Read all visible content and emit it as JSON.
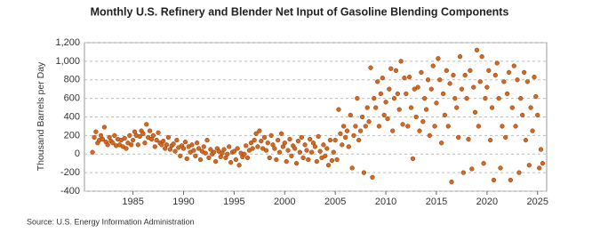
{
  "chart_data": {
    "type": "scatter",
    "title": "Monthly U.S. Refinery and Blender Net Input of Gasoline Blending Components",
    "y_label": "Thousand Barrels per Day",
    "source": "Source: U.S. Energy Information Administration",
    "color": "#d2691e",
    "grid": true,
    "xlim": [
      1980.2,
      2025.9
    ],
    "xticks": [
      1985,
      1990,
      1995,
      2000,
      2005,
      2010,
      2015,
      2020,
      2025
    ],
    "ylim": [
      -400,
      1200
    ],
    "yticks": [
      -400,
      -200,
      0,
      200,
      400,
      600,
      800,
      {
        "value": 1000,
        "label": "1,000"
      },
      {
        "value": 1200,
        "label": "1,200"
      }
    ],
    "series": [
      {
        "x": [
          1981,
          1981.17,
          1981.33,
          1981.5,
          1981.67,
          1981.83,
          1982,
          1982.17,
          1982.33,
          1982.5,
          1982.67,
          1982.83,
          1983,
          1983.17,
          1983.33,
          1983.5,
          1983.67,
          1983.83,
          1984,
          1984.17,
          1984.33,
          1984.5,
          1984.67,
          1984.83,
          1985,
          1985.17,
          1985.33,
          1985.5,
          1985.67,
          1985.83,
          1986,
          1986.17,
          1986.33,
          1986.5,
          1986.67,
          1986.83,
          1987,
          1987.17,
          1987.33,
          1987.5,
          1987.67,
          1987.83,
          1988,
          1988.17,
          1988.33,
          1988.5,
          1988.67,
          1988.83,
          1989,
          1989.17,
          1989.33,
          1989.5,
          1989.67,
          1989.83,
          1990,
          1990.17,
          1990.33,
          1990.5,
          1990.67,
          1990.83,
          1991,
          1991.17,
          1991.33,
          1991.5,
          1991.67,
          1991.83,
          1992,
          1992.17,
          1992.33,
          1992.5,
          1992.67,
          1992.83,
          1993,
          1993.17,
          1993.33,
          1993.5,
          1993.67,
          1993.83,
          1994,
          1994.17,
          1994.33,
          1994.5,
          1994.67,
          1994.83,
          1995,
          1995.17,
          1995.33,
          1995.5,
          1995.67,
          1995.83,
          1996,
          1996.17,
          1996.33,
          1996.5,
          1996.67,
          1996.83,
          1997,
          1997.17,
          1997.33,
          1997.5,
          1997.67,
          1997.83,
          1998,
          1998.17,
          1998.33,
          1998.5,
          1998.67,
          1998.83,
          1999,
          1999.17,
          1999.33,
          1999.5,
          1999.67,
          1999.83,
          2000,
          2000.17,
          2000.33,
          2000.5,
          2000.67,
          2000.83,
          2001,
          2001.17,
          2001.33,
          2001.5,
          2001.67,
          2001.83,
          2002,
          2002.17,
          2002.33,
          2002.5,
          2002.67,
          2002.83,
          2003,
          2003.17,
          2003.33,
          2003.5,
          2003.67,
          2003.83,
          2004,
          2004.17,
          2004.33,
          2004.5,
          2004.67,
          2004.83,
          2005,
          2005.17,
          2005.33,
          2005.5,
          2005.67,
          2005.83,
          2006,
          2006.17,
          2006.33,
          2006.5,
          2006.67,
          2006.83,
          2007,
          2007.17,
          2007.33,
          2007.5,
          2007.67,
          2007.83,
          2008,
          2008.17,
          2008.33,
          2008.5,
          2008.67,
          2008.83,
          2009,
          2009.17,
          2009.33,
          2009.5,
          2009.67,
          2009.83,
          2010,
          2010.17,
          2010.33,
          2010.5,
          2010.67,
          2010.83,
          2011,
          2011.17,
          2011.33,
          2011.5,
          2011.67,
          2011.83,
          2012,
          2012.17,
          2012.33,
          2012.5,
          2012.67,
          2012.83,
          2013,
          2013.17,
          2013.33,
          2013.5,
          2013.67,
          2013.83,
          2014,
          2014.17,
          2014.33,
          2014.5,
          2014.67,
          2014.83,
          2015,
          2015.17,
          2015.33,
          2015.5,
          2015.67,
          2015.83,
          2016,
          2016.17,
          2016.33,
          2016.5,
          2016.67,
          2016.83,
          2017,
          2017.17,
          2017.33,
          2017.5,
          2017.67,
          2017.83,
          2018,
          2018.17,
          2018.33,
          2018.5,
          2018.67,
          2018.83,
          2019,
          2019.17,
          2019.33,
          2019.5,
          2019.67,
          2019.83,
          2020,
          2020.17,
          2020.33,
          2020.5,
          2020.67,
          2020.83,
          2021,
          2021.17,
          2021.33,
          2021.5,
          2021.67,
          2021.83,
          2022,
          2022.17,
          2022.33,
          2022.5,
          2022.67,
          2022.83,
          2023,
          2023.17,
          2023.33,
          2023.5,
          2023.67,
          2023.83,
          2024,
          2024.17,
          2024.33,
          2024.5,
          2024.67,
          2024.83,
          2025,
          2025.17,
          2025.33,
          2025.5
        ],
        "values": [
          20,
          180,
          240,
          120,
          150,
          200,
          160,
          290,
          130,
          100,
          180,
          140,
          120,
          200,
          90,
          160,
          100,
          150,
          80,
          170,
          60,
          120,
          200,
          100,
          150,
          240,
          200,
          100,
          190,
          250,
          220,
          120,
          320,
          180,
          250,
          160,
          200,
          80,
          150,
          230,
          120,
          100,
          140,
          60,
          100,
          180,
          50,
          90,
          110,
          30,
          150,
          70,
          -20,
          90,
          60,
          130,
          -50,
          80,
          20,
          100,
          40,
          -20,
          120,
          60,
          -60,
          30,
          80,
          10,
          150,
          -40,
          50,
          0,
          20,
          -80,
          60,
          30,
          -30,
          10,
          50,
          -40,
          0,
          80,
          -90,
          20,
          30,
          -60,
          60,
          -120,
          10,
          -30,
          0,
          90,
          -40,
          40,
          120,
          60,
          150,
          220,
          80,
          250,
          140,
          60,
          180,
          40,
          120,
          -40,
          200,
          100,
          60,
          -60,
          150,
          20,
          220,
          80,
          120,
          -80,
          40,
          160,
          -20,
          90,
          60,
          -100,
          140,
          20,
          180,
          -40,
          100,
          40,
          -60,
          160,
          20,
          120,
          80,
          -80,
          190,
          30,
          -40,
          100,
          -20,
          60,
          -120,
          150,
          -70,
          20,
          150,
          -60,
          480,
          220,
          100,
          300,
          180,
          250,
          80,
          420,
          -150,
          200,
          300,
          600,
          150,
          250,
          400,
          -200,
          300,
          500,
          350,
          930,
          -250,
          600,
          500,
          780,
          300,
          650,
          820,
          420,
          560,
          380,
          700,
          920,
          250,
          600,
          900,
          650,
          480,
          1000,
          320,
          820,
          650,
          300,
          830,
          500,
          -50,
          700,
          400,
          720,
          250,
          880,
          350,
          600,
          480,
          800,
          200,
          700,
          950,
          300,
          550,
          1030,
          800,
          120,
          650,
          420,
          900,
          300,
          760,
          -300,
          850,
          600,
          500,
          180,
          1050,
          700,
          -200,
          850,
          600,
          160,
          900,
          -160,
          720,
          450,
          1120,
          300,
          780,
          1050,
          -100,
          600,
          720,
          900,
          150,
          500,
          -280,
          850,
          980,
          600,
          -150,
          300,
          780,
          180,
          650,
          880,
          -280,
          500,
          950,
          300,
          800,
          -200,
          600,
          420,
          880,
          150,
          780,
          -120,
          500,
          250,
          830,
          620,
          420,
          -150,
          50,
          -100
        ]
      }
    ]
  }
}
